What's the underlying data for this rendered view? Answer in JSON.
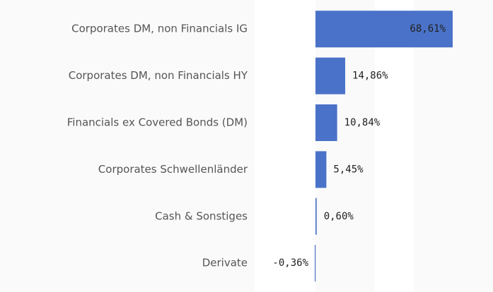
{
  "chart_data": {
    "type": "bar",
    "orientation": "horizontal",
    "categories": [
      "Corporates DM, non Financials IG",
      "Corporates DM, non Financials HY",
      "Financials ex Covered Bonds (DM)",
      "Corporates Schwellenländer",
      "Cash & Sonstiges",
      "Derivate"
    ],
    "values": [
      68.61,
      14.86,
      10.84,
      5.45,
      0.6,
      -0.36
    ],
    "value_labels": [
      "68,61%",
      "14,86%",
      "10,84%",
      "5,45%",
      "0,60%",
      "-0,36%"
    ],
    "color": "#4a72c8"
  }
}
